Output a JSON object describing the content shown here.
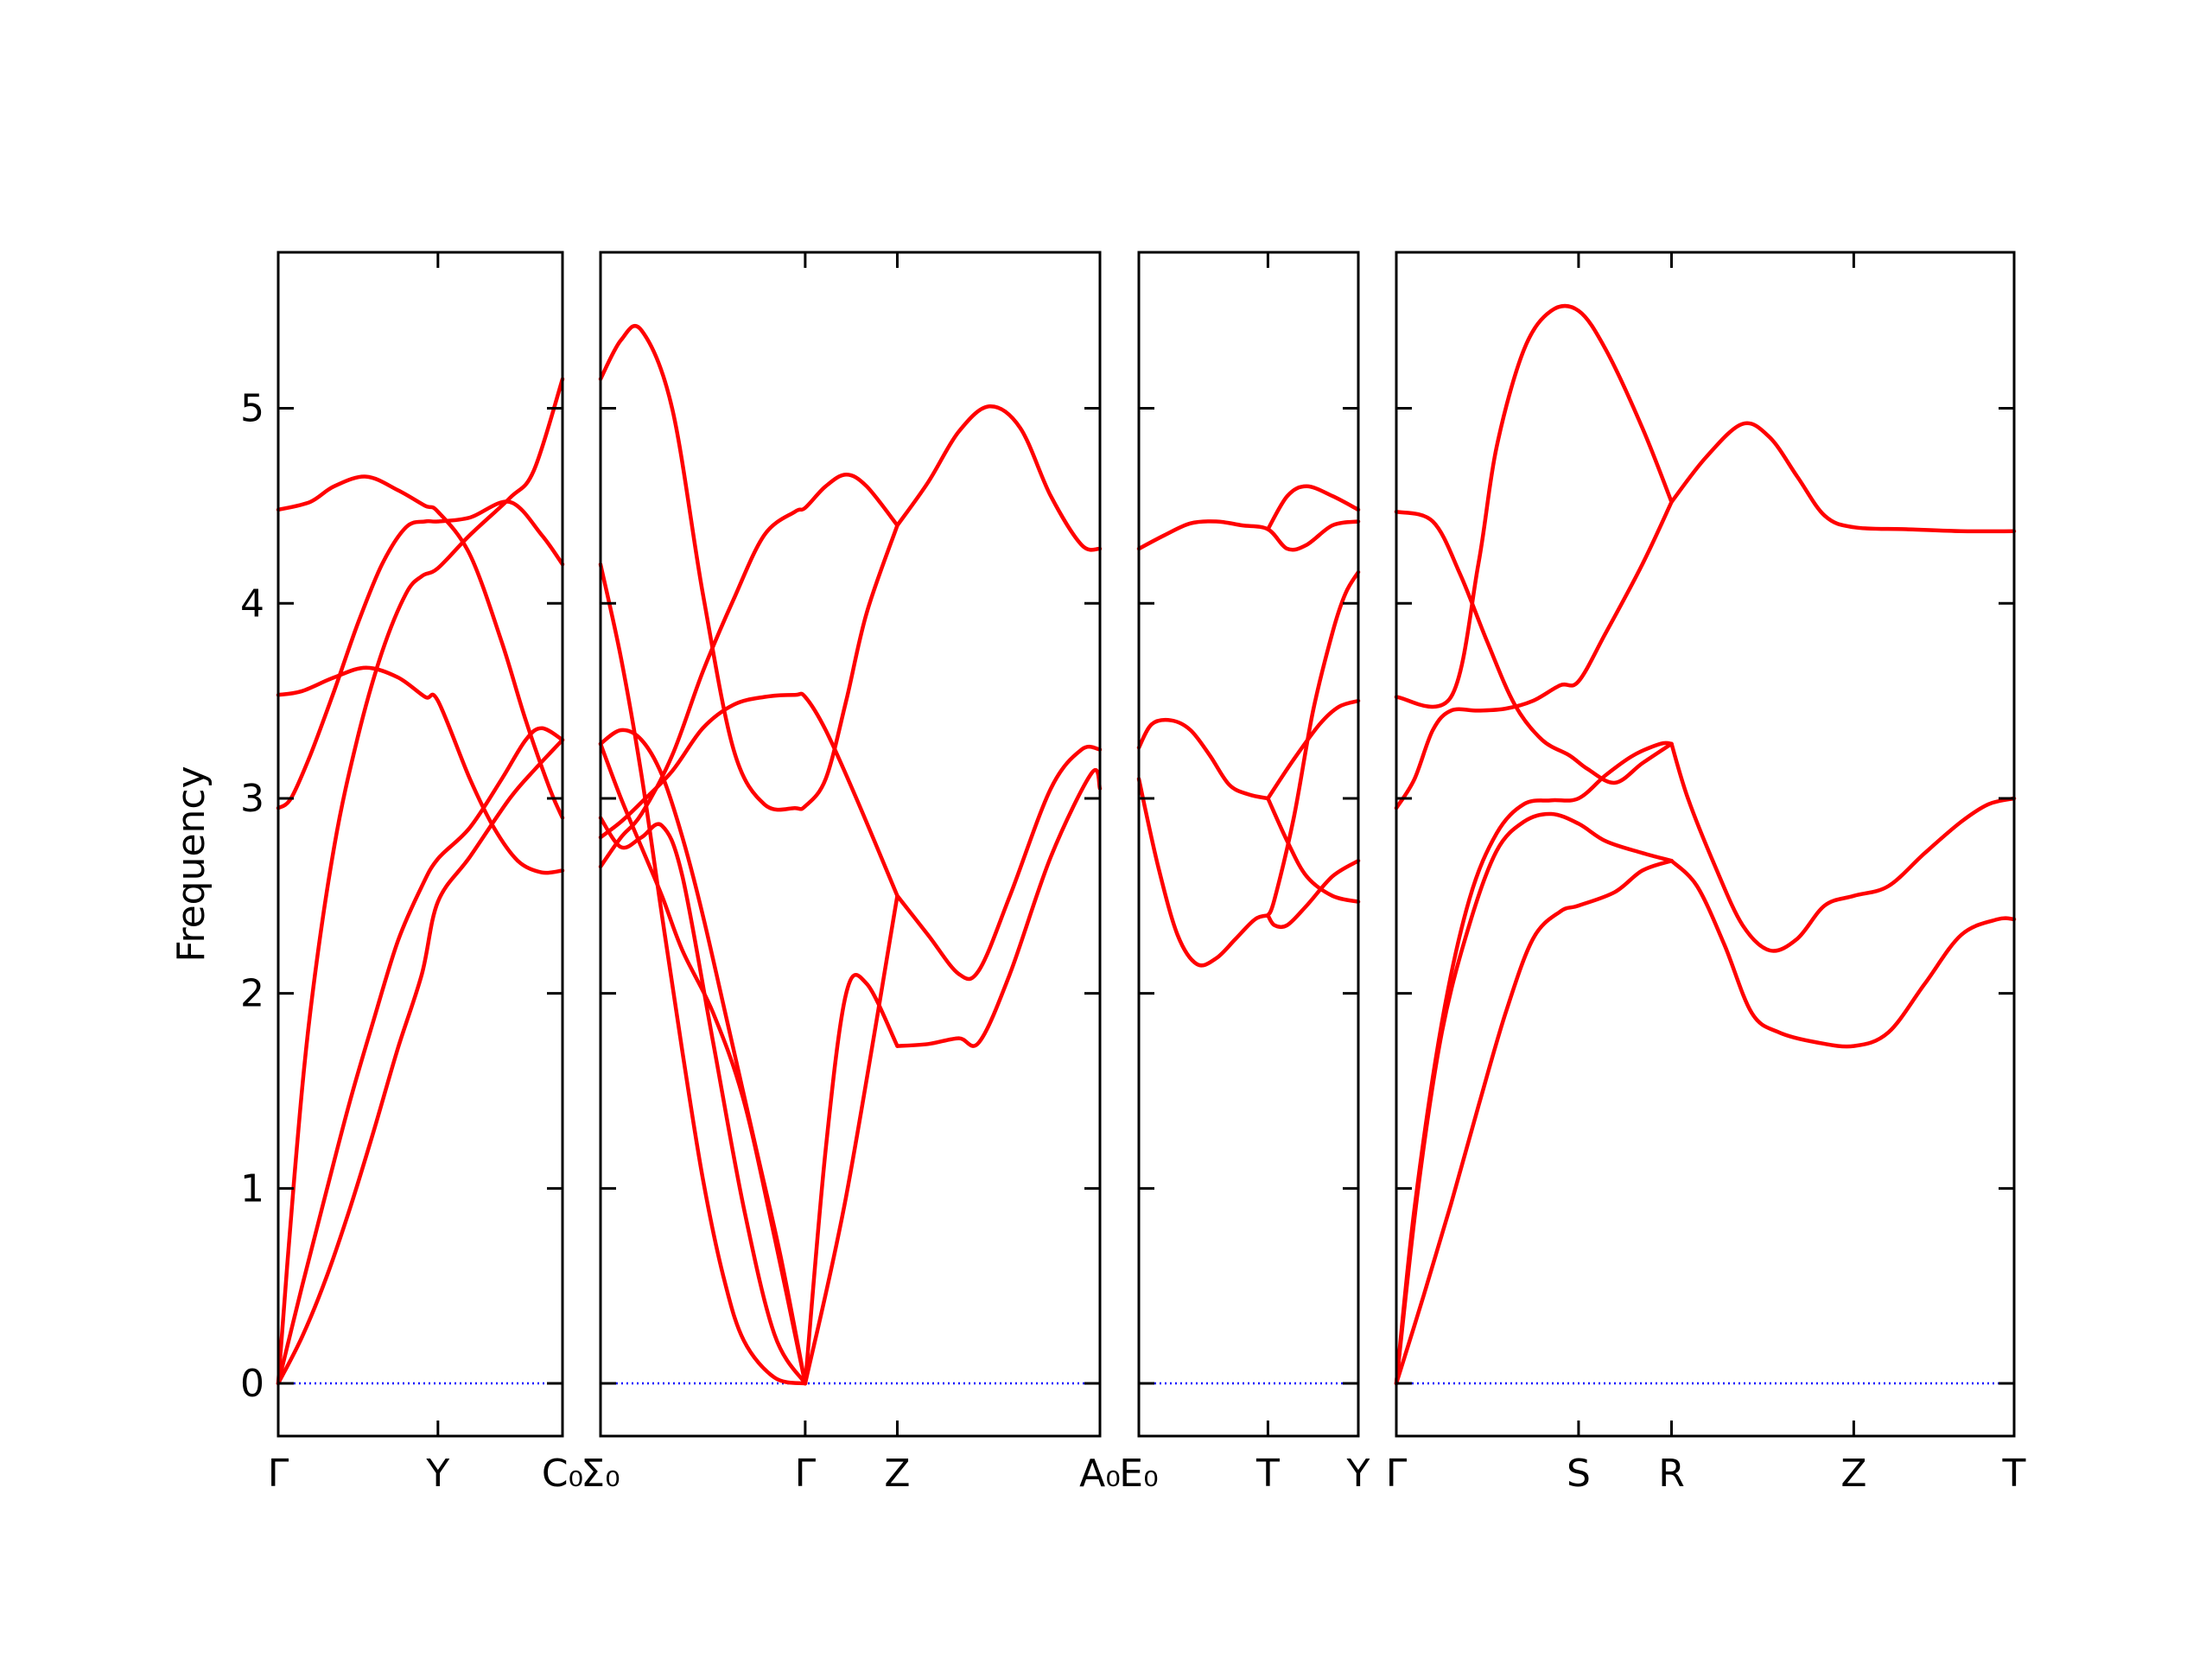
{
  "chart_data": {
    "type": "line",
    "ylabel": "Frequency",
    "ylim": [
      -0.27,
      5.8
    ],
    "yticks": [
      0,
      1,
      2,
      3,
      4,
      5
    ],
    "colors": {
      "bands": "#ff0000",
      "zero_line": "#0000ff",
      "frame": "#000000"
    },
    "grid": false,
    "panels": [
      {
        "name": "panel-1",
        "xlim": [
          0,
          1.78
        ],
        "xticks": [
          {
            "x": 0,
            "label": "Γ"
          },
          {
            "x": 1.0,
            "label": "Y"
          },
          {
            "x": 1.78,
            "label": "C₀"
          }
        ],
        "bands": [
          {
            "x": [
              0,
              0.15,
              0.3,
              0.45,
              0.6,
              0.75,
              0.9,
              1.0,
              1.2,
              1.45,
              1.62,
              1.78
            ],
            "y": [
              0,
              0.24,
              0.54,
              0.9,
              1.3,
              1.72,
              2.1,
              2.47,
              2.7,
              3.0,
              3.16,
              3.3
            ]
          },
          {
            "x": [
              0,
              0.15,
              0.3,
              0.45,
              0.6,
              0.75,
              0.9,
              1.0,
              1.2,
              1.4,
              1.55,
              1.65,
              1.78
            ],
            "y": [
              0,
              0.5,
              0.98,
              1.45,
              1.87,
              2.27,
              2.55,
              2.69,
              2.85,
              3.1,
              3.3,
              3.36,
              3.3
            ]
          },
          {
            "x": [
              0,
              0.1,
              0.2,
              0.35,
              0.5,
              0.65,
              0.8,
              0.9,
              1.0,
              1.2,
              1.45,
              1.6,
              1.78
            ],
            "y": [
              0,
              1.05,
              1.9,
              2.75,
              3.32,
              3.75,
              4.05,
              4.14,
              4.18,
              4.35,
              4.54,
              4.68,
              5.15
            ]
          },
          {
            "x": [
              0,
              0.08,
              0.2,
              0.35,
              0.5,
              0.65,
              0.8,
              0.92,
              1.0,
              1.2,
              1.45,
              1.65,
              1.78
            ],
            "y": [
              2.95,
              3.0,
              3.22,
              3.55,
              3.9,
              4.2,
              4.39,
              4.42,
              4.42,
              4.44,
              4.52,
              4.35,
              4.2
            ]
          },
          {
            "x": [
              0,
              0.2,
              0.35,
              0.55,
              0.75,
              0.92,
              1.0,
              1.2,
              1.4,
              1.55,
              1.7,
              1.78
            ],
            "y": [
              4.48,
              4.52,
              4.6,
              4.65,
              4.58,
              4.5,
              4.47,
              4.25,
              3.8,
              3.4,
              3.05,
              2.9
            ]
          },
          {
            "x": [
              0,
              0.15,
              0.35,
              0.55,
              0.75,
              0.92,
              1.0,
              1.2,
              1.35,
              1.5,
              1.65,
              1.78
            ],
            "y": [
              3.53,
              3.55,
              3.62,
              3.67,
              3.62,
              3.52,
              3.5,
              3.1,
              2.85,
              2.68,
              2.62,
              2.63
            ]
          }
        ]
      },
      {
        "name": "panel-2",
        "xlim": [
          0,
          2.44
        ],
        "xticks": [
          {
            "x": 0,
            "label": "Σ₀"
          },
          {
            "x": 1.0,
            "label": "Γ"
          },
          {
            "x": 1.45,
            "label": "Z"
          },
          {
            "x": 2.44,
            "label": "A₀"
          }
        ],
        "bands": [
          {
            "x": [
              0,
              0.1,
              0.2,
              0.3,
              0.4,
              0.55,
              0.7,
              0.85,
              1.0
            ],
            "y": [
              2.9,
              2.75,
              2.8,
              2.86,
              2.6,
              1.75,
              0.9,
              0.25,
              0
            ]
          },
          {
            "x": [
              0,
              0.1,
              0.2,
              0.3,
              0.4,
              0.55,
              0.7,
              0.85,
              1.0
            ],
            "y": [
              3.28,
              3.0,
              2.75,
              2.5,
              2.22,
              1.9,
              1.45,
              0.75,
              0
            ]
          },
          {
            "x": [
              0,
              0.1,
              0.2,
              0.3,
              0.4,
              0.5,
              0.6,
              0.7,
              0.85,
              1.0
            ],
            "y": [
              4.2,
              3.72,
              3.12,
              2.4,
              1.7,
              1.05,
              0.55,
              0.22,
              0.03,
              0
            ]
          },
          {
            "x": [
              0,
              0.1,
              0.2,
              0.3,
              0.4,
              0.5,
              0.62,
              0.75,
              0.88,
              1.0
            ],
            "y": [
              3.28,
              3.35,
              3.3,
              3.12,
              2.8,
              2.4,
              1.85,
              1.25,
              0.65,
              0
            ]
          },
          {
            "x": [
              1.0,
              1.1,
              1.2,
              1.3,
              1.45
            ],
            "y": [
              0,
              1.2,
              2.0,
              2.05,
              1.73
            ]
          },
          {
            "x": [
              1.0,
              1.2,
              1.45
            ],
            "y": [
              0,
              0.96,
              2.5
            ]
          },
          {
            "x": [
              1.45,
              1.6,
              1.75,
              1.85,
              2.0,
              2.2,
              2.4,
              2.44
            ],
            "y": [
              1.73,
              1.74,
              1.77,
              1.75,
              2.1,
              2.7,
              3.13,
              3.05
            ]
          },
          {
            "x": [
              1.45,
              1.6,
              1.75,
              1.85,
              2.0,
              2.2,
              2.35,
              2.44
            ],
            "y": [
              2.5,
              2.3,
              2.1,
              2.12,
              2.5,
              3.05,
              3.25,
              3.25
            ]
          },
          {
            "x": [
              0,
              0.1,
              0.2,
              0.35,
              0.5,
              0.65,
              0.8,
              0.95,
              1.0,
              1.1,
              1.2,
              1.3,
              1.45
            ],
            "y": [
              2.65,
              2.8,
              2.92,
              3.22,
              3.65,
              4.02,
              4.35,
              4.47,
              4.49,
              4.6,
              4.66,
              4.6,
              4.4
            ]
          },
          {
            "x": [
              0,
              0.1,
              0.2,
              0.35,
              0.5,
              0.65,
              0.8,
              0.95,
              1.0,
              1.1,
              1.25,
              1.45
            ],
            "y": [
              2.8,
              2.88,
              2.98,
              3.14,
              3.36,
              3.48,
              3.52,
              3.53,
              3.52,
              3.35,
              3.0,
              2.5
            ]
          },
          {
            "x": [
              0,
              0.1,
              0.2,
              0.35,
              0.5,
              0.65,
              0.8,
              0.95,
              1.0,
              1.1,
              1.2,
              1.3,
              1.45
            ],
            "y": [
              5.15,
              5.35,
              5.4,
              5.0,
              4.05,
              3.25,
              2.97,
              2.95,
              2.96,
              3.1,
              3.5,
              3.95,
              4.4
            ]
          },
          {
            "x": [
              1.45,
              1.6,
              1.75,
              1.9,
              2.05,
              2.2,
              2.35,
              2.44
            ],
            "y": [
              4.4,
              4.62,
              4.88,
              5.01,
              4.9,
              4.55,
              4.3,
              4.28
            ]
          }
        ]
      },
      {
        "name": "panel-3",
        "xlim": [
          0,
          1.7
        ],
        "xticks": [
          {
            "x": 0,
            "label": "E₀"
          },
          {
            "x": 1.0,
            "label": "T"
          },
          {
            "x": 1.7,
            "label": "Y"
          }
        ],
        "bands": [
          {
            "x": [
              0,
              0.2,
              0.4,
              0.6,
              0.8,
              1.0,
              1.15,
              1.3,
              1.5,
              1.7
            ],
            "y": [
              4.28,
              4.35,
              4.41,
              4.42,
              4.4,
              4.38,
              4.28,
              4.3,
              4.4,
              4.42
            ]
          },
          {
            "x": [
              1.0,
              1.15,
              1.3,
              1.5,
              1.7
            ],
            "y": [
              4.38,
              4.55,
              4.6,
              4.55,
              4.48
            ]
          },
          {
            "x": [
              0,
              0.1,
              0.25,
              0.4,
              0.55,
              0.7,
              0.85,
              1.0
            ],
            "y": [
              3.26,
              3.38,
              3.4,
              3.35,
              3.22,
              3.07,
              3.02,
              3.0
            ]
          },
          {
            "x": [
              1.0,
              1.2,
              1.4,
              1.55,
              1.7
            ],
            "y": [
              3.0,
              3.2,
              3.38,
              3.47,
              3.5
            ]
          },
          {
            "x": [
              1.0,
              1.15,
              1.3,
              1.5,
              1.7
            ],
            "y": [
              3.0,
              2.78,
              2.6,
              2.5,
              2.47
            ]
          },
          {
            "x": [
              0,
              0.15,
              0.3,
              0.45,
              0.6,
              0.75,
              0.9,
              1.0
            ],
            "y": [
              3.1,
              2.65,
              2.3,
              2.15,
              2.18,
              2.28,
              2.38,
              2.4
            ]
          },
          {
            "x": [
              1.0,
              1.05,
              1.2,
              1.35,
              1.5,
              1.6,
              1.7
            ],
            "y": [
              2.4,
              2.48,
              2.9,
              3.45,
              3.85,
              4.05,
              4.16
            ]
          },
          {
            "x": [
              1.0,
              1.05,
              1.15,
              1.3,
              1.5,
              1.7
            ],
            "y": [
              2.4,
              2.35,
              2.35,
              2.45,
              2.6,
              2.68
            ]
          }
        ]
      },
      {
        "name": "panel-4",
        "xlim": [
          0,
          3.39
        ],
        "xticks": [
          {
            "x": 0,
            "label": "Γ"
          },
          {
            "x": 1.0,
            "label": "S"
          },
          {
            "x": 1.51,
            "label": "R"
          },
          {
            "x": 2.51,
            "label": "Z"
          },
          {
            "x": 3.39,
            "label": "T"
          }
        ],
        "bands": [
          {
            "x": [
              0,
              0.15,
              0.3,
              0.45,
              0.6,
              0.75,
              0.9,
              1.0,
              1.2,
              1.35,
              1.51
            ],
            "y": [
              0,
              0.45,
              0.92,
              1.42,
              1.9,
              2.28,
              2.42,
              2.45,
              2.52,
              2.63,
              2.68
            ]
          },
          {
            "x": [
              0,
              0.12,
              0.25,
              0.4,
              0.55,
              0.7,
              0.85,
              1.0,
              1.15,
              1.35,
              1.51
            ],
            "y": [
              0,
              1.0,
              1.8,
              2.35,
              2.73,
              2.88,
              2.92,
              2.87,
              2.78,
              2.72,
              2.68
            ]
          },
          {
            "x": [
              0,
              0.1,
              0.25,
              0.4,
              0.55,
              0.7,
              0.85,
              1.0,
              1.15,
              1.3,
              1.45,
              1.51
            ],
            "y": [
              0,
              0.9,
              1.85,
              2.48,
              2.82,
              2.97,
              2.99,
              3.0,
              3.12,
              3.22,
              3.28,
              3.28
            ]
          },
          {
            "x": [
              1.51,
              1.65,
              1.8,
              1.95,
              2.1,
              2.3,
              2.51,
              2.7,
              2.9,
              3.1,
              3.3,
              3.39
            ],
            "y": [
              2.68,
              2.55,
              2.25,
              1.9,
              1.8,
              1.75,
              1.73,
              1.8,
              2.05,
              2.3,
              2.38,
              2.38
            ]
          },
          {
            "x": [
              1.51,
              1.6,
              1.75,
              1.9,
              2.05,
              2.2,
              2.35,
              2.51,
              2.7,
              2.9,
              3.1,
              3.25,
              3.39
            ],
            "y": [
              3.28,
              3.0,
              2.65,
              2.35,
              2.22,
              2.28,
              2.45,
              2.5,
              2.55,
              2.72,
              2.88,
              2.97,
              3.0
            ]
          },
          {
            "x": [
              0,
              0.2,
              0.35,
              0.5,
              0.65,
              0.8,
              0.95,
              1.05,
              1.2,
              1.35,
              1.51
            ],
            "y": [
              4.47,
              4.42,
              4.15,
              3.8,
              3.48,
              3.3,
              3.22,
              3.15,
              3.08,
              3.18,
              3.28
            ]
          },
          {
            "x": [
              0,
              0.3,
              0.45,
              0.55,
              0.7,
              0.85,
              1.0,
              1.15,
              1.35,
              1.51
            ],
            "y": [
              3.52,
              3.52,
              4.2,
              4.8,
              5.3,
              5.5,
              5.5,
              5.3,
              4.9,
              4.52
            ]
          },
          {
            "x": [
              0,
              0.1,
              0.2,
              0.3,
              0.45,
              0.6,
              0.75,
              0.9,
              1.0,
              1.15,
              1.35,
              1.51
            ],
            "y": [
              2.95,
              3.1,
              3.35,
              3.45,
              3.45,
              3.46,
              3.5,
              3.58,
              3.6,
              3.85,
              4.2,
              4.52
            ]
          },
          {
            "x": [
              1.51,
              1.7,
              1.9,
              2.05,
              2.2,
              2.35,
              2.51,
              2.8,
              3.1,
              3.39
            ],
            "y": [
              4.52,
              4.75,
              4.92,
              4.85,
              4.65,
              4.45,
              4.39,
              4.38,
              4.37,
              4.37
            ]
          }
        ]
      }
    ]
  }
}
